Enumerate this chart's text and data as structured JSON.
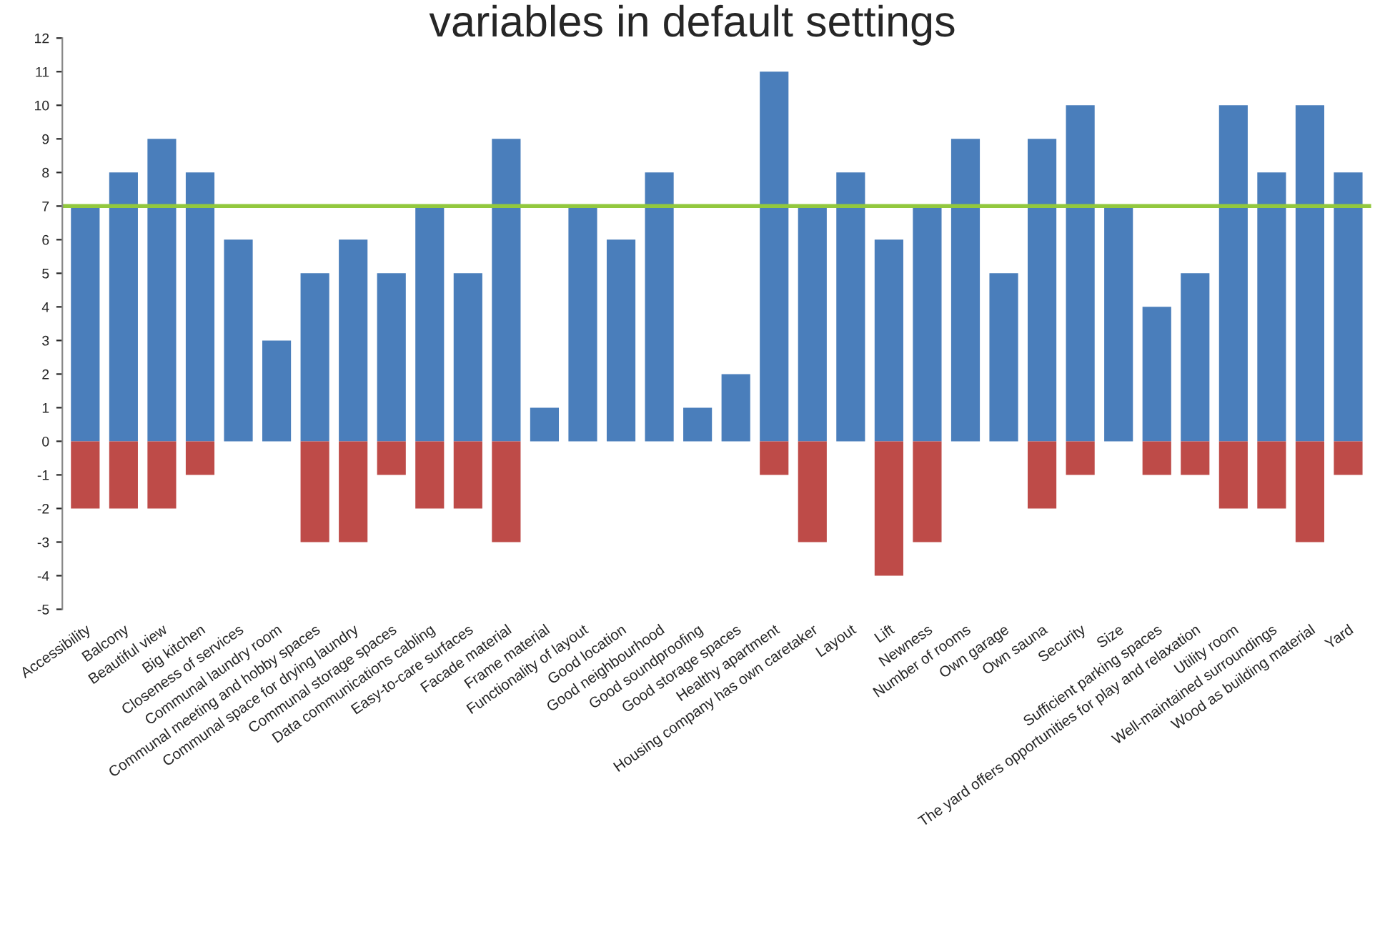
{
  "chart_data": {
    "type": "bar",
    "title": "variables in default settings",
    "stacked": true,
    "categories": [
      "Accessibility",
      "Balcony",
      "Beautiful view",
      "Big kitchen",
      "Closeness of services",
      "Communal laundry room",
      "Communal meeting and hobby spaces",
      "Communal space for drying laundry",
      "Communal storage spaces",
      "Data communications cabling",
      "Easy-to-care surfaces",
      "Facade material",
      "Frame material",
      "Functionality of layout",
      "Good location",
      "Good neighbourhood",
      "Good soundproofing",
      "Good storage spaces",
      "Healthy apartment",
      "Housing company has own caretaker",
      "Layout",
      "Lift",
      "Newness",
      "Number of rooms",
      "Own garage",
      "Own sauna",
      "Security",
      "Size",
      "Sufficient parking spaces",
      "The yard offers opportunities for play and relaxation",
      "Utility room",
      "Well-maintained surroundings",
      "Wood as building material",
      "Yard"
    ],
    "series": [
      {
        "color": "#4a7ebb",
        "values": [
          7,
          8,
          9,
          8,
          6,
          3,
          5,
          6,
          5,
          7,
          5,
          9,
          1,
          7,
          6,
          8,
          1,
          2,
          11,
          7,
          8,
          6,
          7,
          9,
          5,
          9,
          10,
          7,
          4,
          5,
          10,
          8,
          10,
          8
        ]
      },
      {
        "color": "#be4b48",
        "values": [
          -2,
          -2,
          -2,
          -1,
          0,
          0,
          -3,
          -3,
          -1,
          -2,
          -2,
          -3,
          0,
          0,
          0,
          0,
          0,
          0,
          -1,
          -3,
          0,
          -4,
          -3,
          0,
          0,
          -2,
          -1,
          0,
          -1,
          -1,
          -2,
          -2,
          -3,
          -1
        ]
      }
    ],
    "ylim": [
      -5,
      12
    ],
    "yticks": [
      -5,
      -4,
      -3,
      -2,
      -1,
      0,
      1,
      2,
      3,
      4,
      5,
      6,
      7,
      8,
      9,
      10,
      11,
      12
    ],
    "ref_lines": [
      {
        "axis": "y",
        "value": 7,
        "color": "#92c83e",
        "line_style": "solid"
      }
    ],
    "grid": false
  }
}
